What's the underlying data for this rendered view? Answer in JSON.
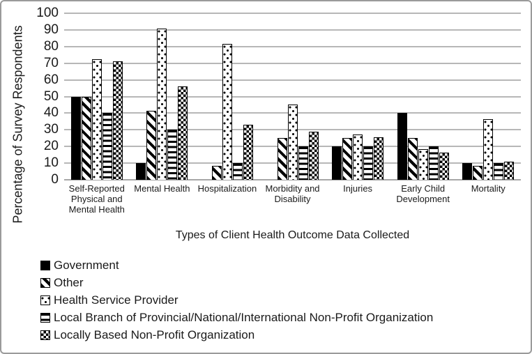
{
  "chart_data": {
    "type": "bar",
    "title": "",
    "x_axis_title": "Types of Client Health Outcome Data Collected",
    "y_axis_title": "Percentage of Survey Respondents",
    "ylim": [
      0,
      100
    ],
    "y_ticks": [
      0,
      10,
      20,
      30,
      40,
      50,
      60,
      70,
      80,
      90,
      100
    ],
    "grid": "horizontal",
    "legend_position": "bottom-left",
    "bar_outline_color": "#000000",
    "gridline_color": "#b7b7b7",
    "categories": [
      "Self-Reported Physical and Mental Health",
      "Mental Health",
      "Hospitalization",
      "Morbidity and Disability",
      "Injuries",
      "Early Child Development",
      "Mortality"
    ],
    "series": [
      {
        "name": "Government",
        "pattern": "solid",
        "values": [
          50,
          10,
          0,
          0,
          20,
          40,
          10
        ]
      },
      {
        "name": "Other",
        "pattern": "diagonal-stripes",
        "values": [
          50,
          41.5,
          8.5,
          25,
          25,
          25,
          8.5
        ]
      },
      {
        "name": "Health Service Provider",
        "pattern": "dots",
        "values": [
          72.5,
          91,
          81.5,
          45,
          27,
          18.5,
          36.5
        ]
      },
      {
        "name": "Local Branch of Provincial/National/International Non-Profit Organization",
        "pattern": "horizontal-stripes",
        "values": [
          40,
          30,
          10,
          20,
          20,
          20,
          10
        ]
      },
      {
        "name": "Locally Based Non-Profit Organization",
        "pattern": "checkerboard",
        "values": [
          71,
          56,
          33,
          29,
          25.5,
          16.5,
          11
        ]
      }
    ]
  }
}
